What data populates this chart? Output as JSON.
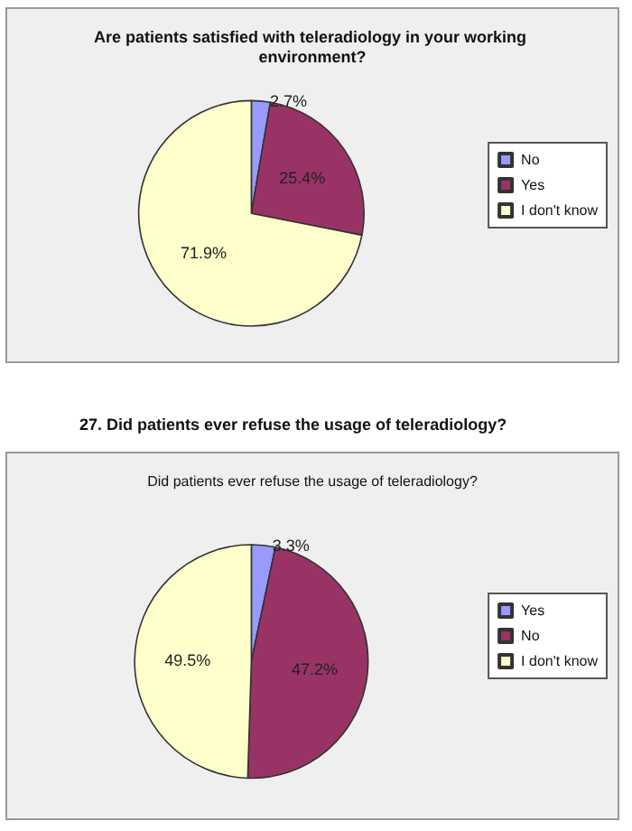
{
  "chart_data": [
    {
      "type": "pie",
      "title": "Are patients satisfied with teleradiology in your working environment?",
      "categories": [
        "No",
        "Yes",
        "I don't know"
      ],
      "values": [
        2.7,
        25.4,
        71.9
      ],
      "colors": [
        "#9999ff",
        "#993366",
        "#ffffcc"
      ],
      "value_labels": [
        "2.7%",
        "25.4%",
        "71.9%"
      ],
      "legend": "right"
    },
    {
      "type": "pie",
      "title": "27. Did patients ever refuse the usage of teleradiology?",
      "subtitle": "Did patients ever refuse the usage of teleradiology?",
      "categories": [
        "Yes",
        "No",
        "I don't know"
      ],
      "values": [
        3.3,
        47.2,
        49.5
      ],
      "colors": [
        "#9999ff",
        "#993366",
        "#ffffcc"
      ],
      "value_labels": [
        "3.3%",
        "47.2%",
        "49.5%"
      ],
      "legend": "right"
    }
  ]
}
